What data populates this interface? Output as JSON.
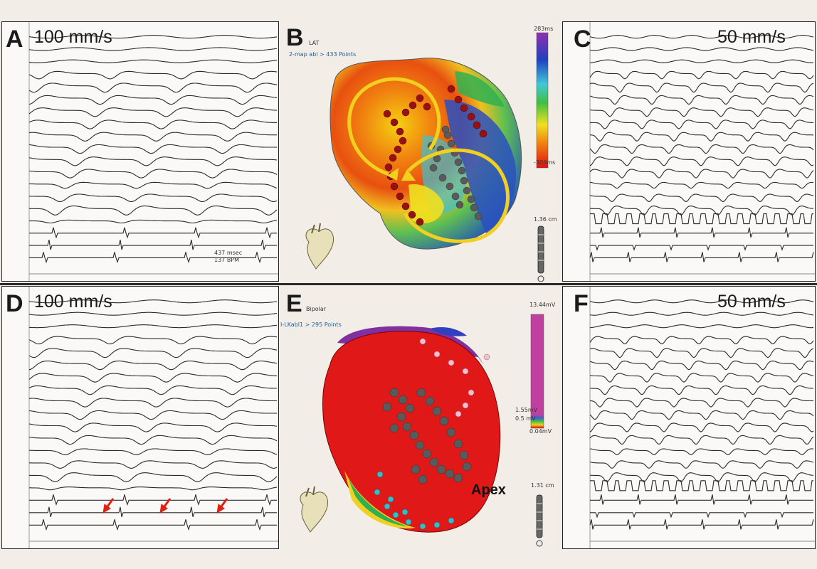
{
  "panels": {
    "A": {
      "letter": "A",
      "speed": "100 mm/s",
      "measure_ms": "437 msec",
      "measure_bpm": "137 BPM"
    },
    "B": {
      "letter": "B",
      "map_name": "LAT",
      "points": "2-map abl > 433 Points",
      "scale_top": "283ms",
      "scale_bottom": "-306ms",
      "scale_length": "1.36 cm"
    },
    "C": {
      "letter": "C",
      "speed": "50 mm/s"
    },
    "D": {
      "letter": "D",
      "speed": "100 mm/s"
    },
    "E": {
      "letter": "E",
      "map_name": "Bipolar",
      "points": "I-LKabl1 > 295 Points",
      "scale_top": "13.44mV",
      "scale_mid1": "1.55mV",
      "scale_mid2": "0.5 mV",
      "scale_bottom": "0.04mV",
      "scale_length": "1.31 cm",
      "apex_label": "Apex"
    },
    "F": {
      "letter": "F",
      "speed": "50 mm/s"
    }
  },
  "colors": {
    "background": "#f3ede7",
    "trace": "#2b2b2b",
    "arrow": "#e02010",
    "circuit": "#f2d020",
    "scar": "#5a5a5a"
  }
}
